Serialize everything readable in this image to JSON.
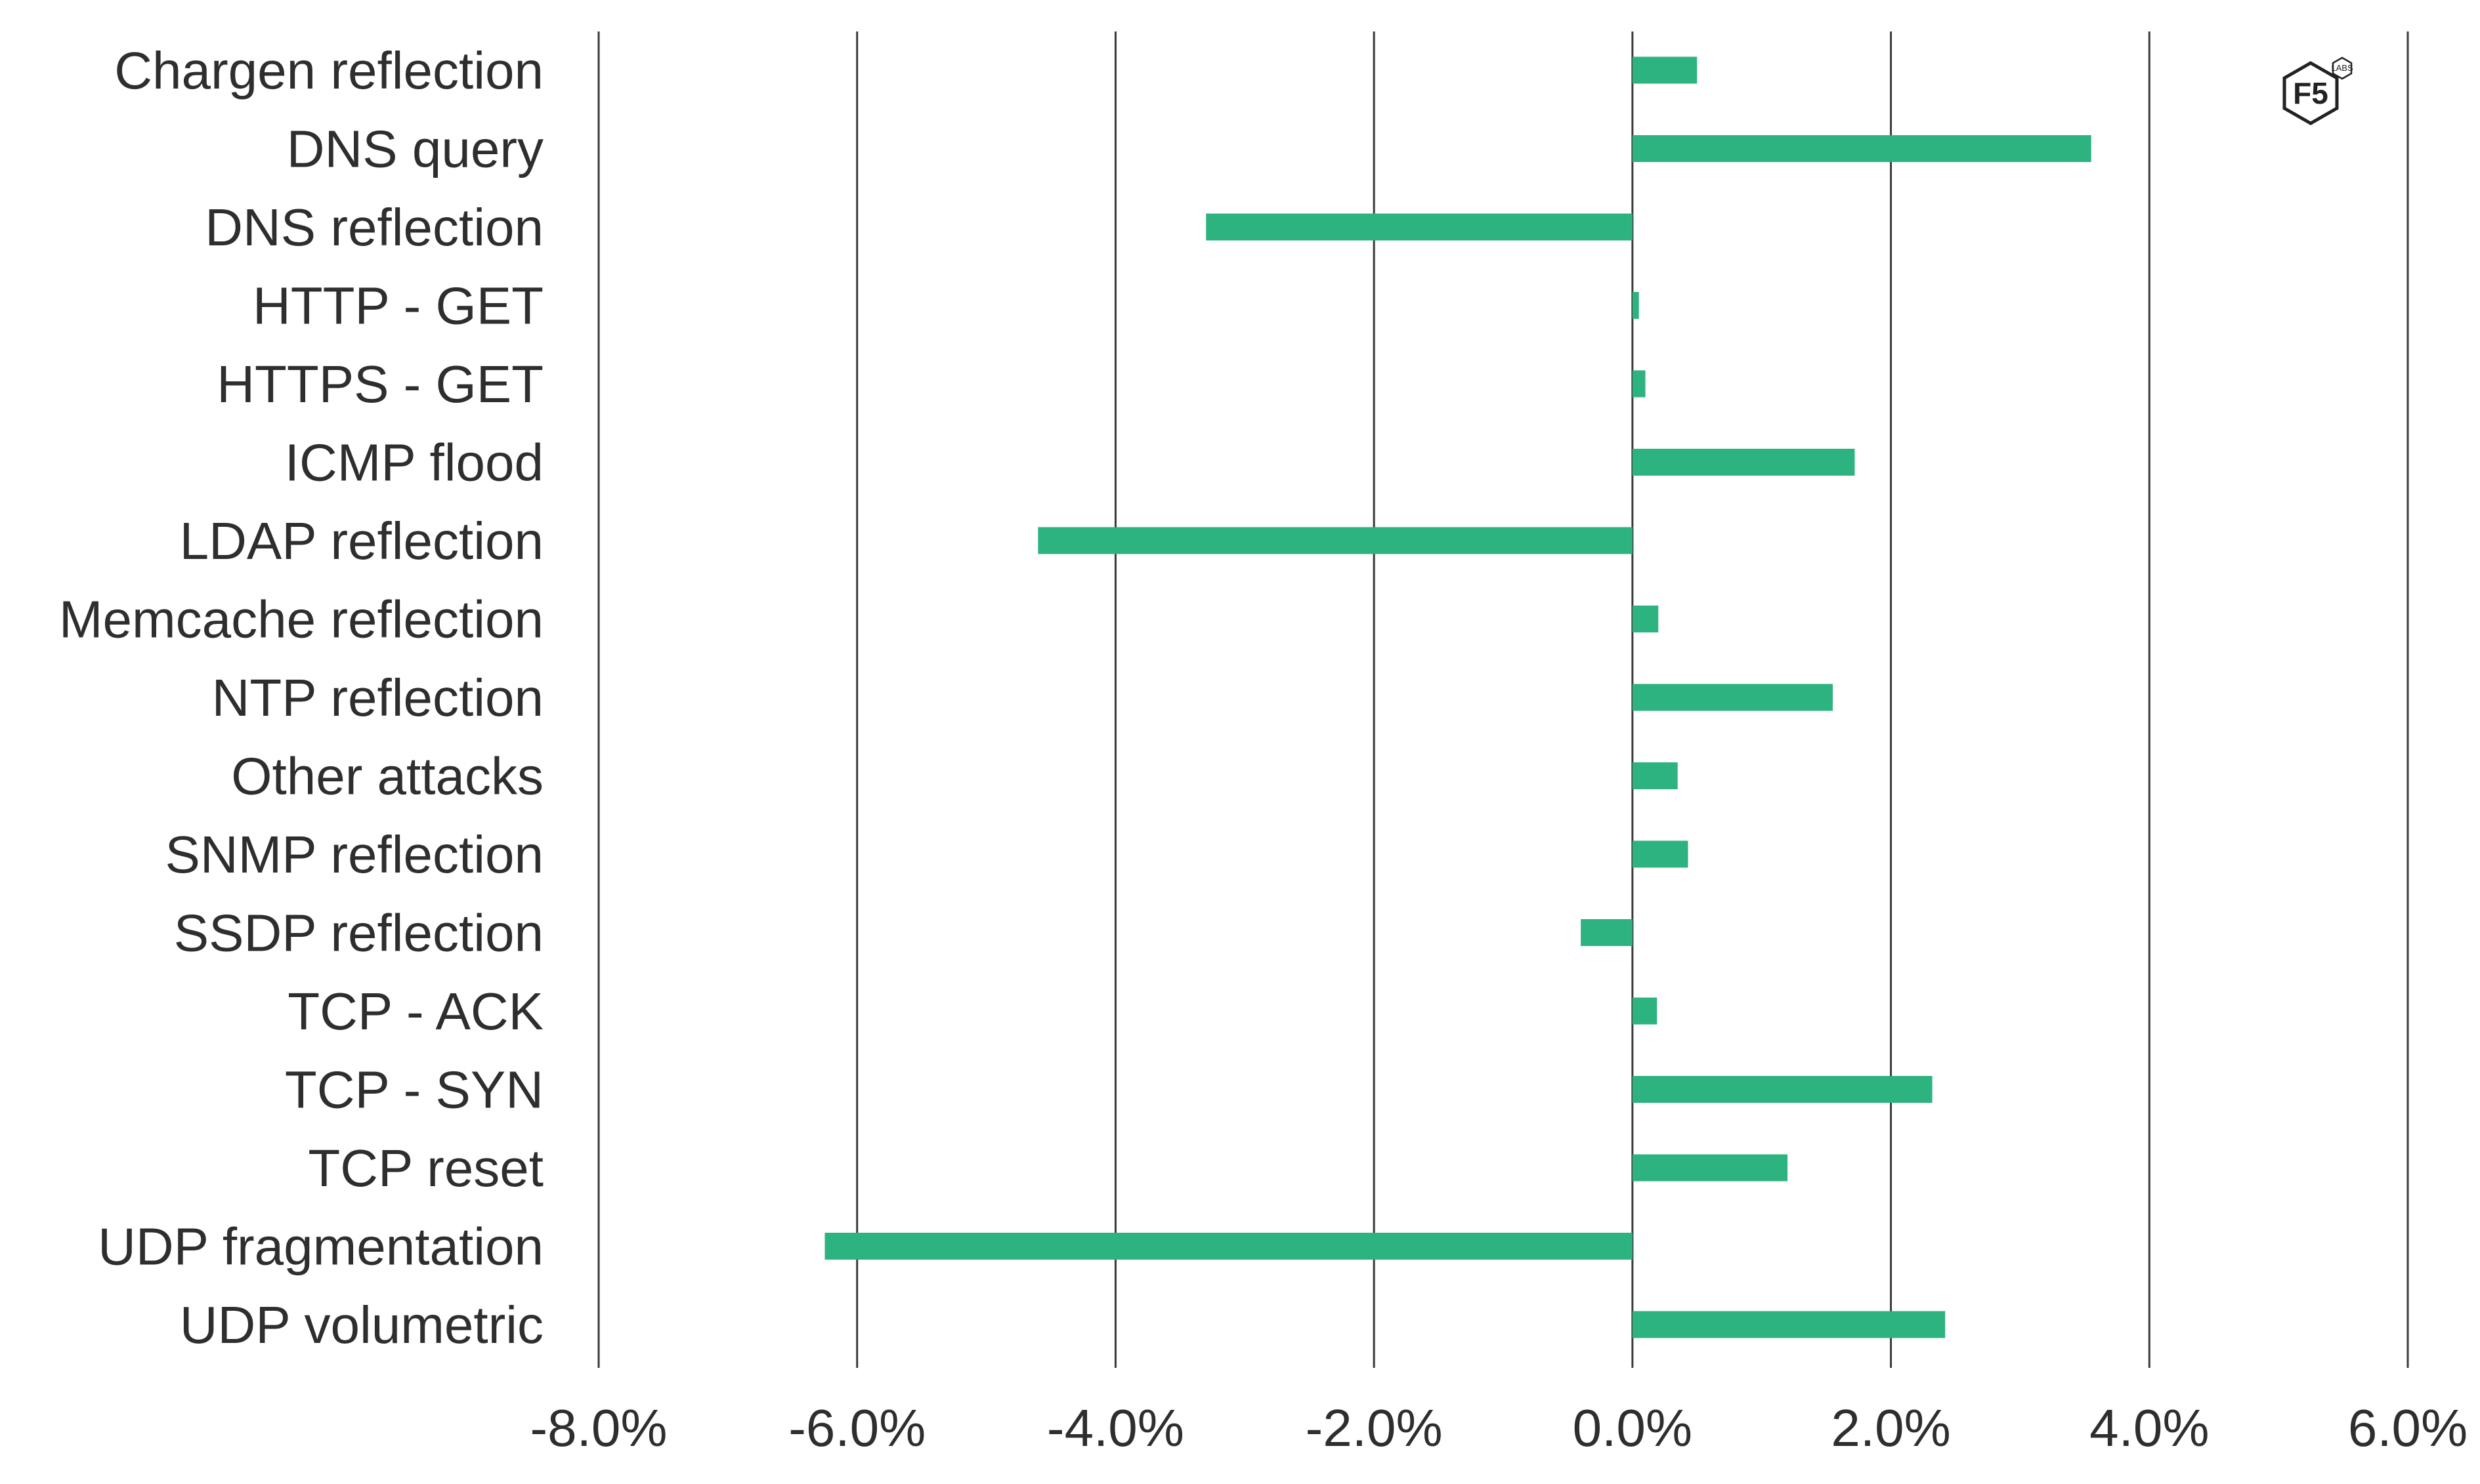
{
  "colors": {
    "bar": "#2db37f",
    "grid": "#3a3a3a",
    "text": "#2e2e2e"
  },
  "logo": {
    "text": "F5",
    "sub_text": "LABS",
    "icon": "f5-labs-hexagon-logo-icon"
  },
  "chart_data": {
    "type": "bar",
    "orientation": "horizontal",
    "title": "",
    "xlabel": "",
    "ylabel": "",
    "xlim": [
      -8.0,
      6.0
    ],
    "x_tick_values": [
      -8,
      -6,
      -4,
      -2,
      0,
      2,
      4,
      6
    ],
    "x_tick_labels": [
      "-8.0%",
      "-6.0%",
      "-4.0%",
      "-2.0%",
      "0.0%",
      "2.0%",
      "4.0%",
      "6.0%"
    ],
    "grid": "vertical gridlines on",
    "legend": "none",
    "categories": [
      "Chargen reflection",
      "DNS query",
      "DNS reflection",
      "HTTP - GET",
      "HTTPS - GET",
      "ICMP flood",
      "LDAP reflection",
      "Memcache reflection",
      "NTP reflection",
      "Other attacks",
      "SNMP reflection",
      "SSDP reflection",
      "TCP - ACK",
      "TCP - SYN",
      "TCP reset",
      "UDP fragmentation",
      "UDP volumetric"
    ],
    "values": [
      0.5,
      3.55,
      -3.3,
      0.05,
      0.1,
      1.72,
      -4.6,
      0.2,
      1.55,
      0.35,
      0.43,
      -0.4,
      0.19,
      2.32,
      1.2,
      -6.25,
      2.42
    ],
    "unit": "%"
  }
}
